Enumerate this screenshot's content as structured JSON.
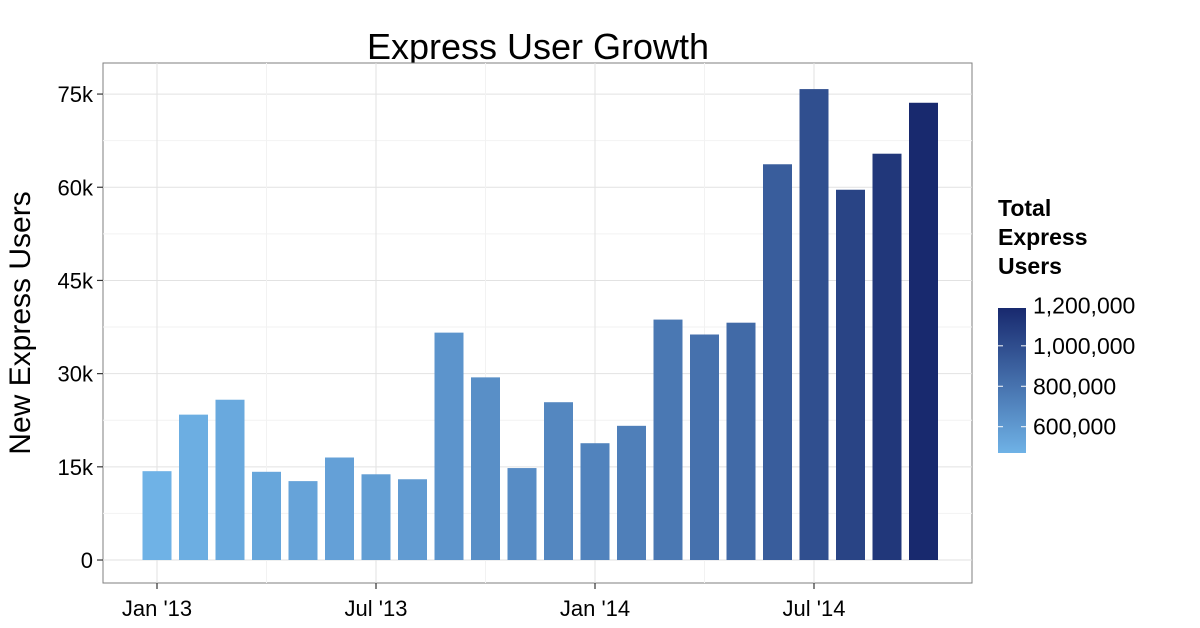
{
  "chart_data": {
    "type": "bar",
    "title": "Express User Growth",
    "xlabel": "",
    "ylabel": "New Express Users",
    "ylim": [
      -3700,
      80000
    ],
    "y_ticks": [
      {
        "value": 0,
        "label": "0"
      },
      {
        "value": 15000,
        "label": "15k"
      },
      {
        "value": 30000,
        "label": "30k"
      },
      {
        "value": 45000,
        "label": "45k"
      },
      {
        "value": 60000,
        "label": "60k"
      },
      {
        "value": 75000,
        "label": "75k"
      }
    ],
    "x_ticks": [
      {
        "index": 0,
        "label": "Jan '13"
      },
      {
        "index": 6,
        "label": "Jul '13"
      },
      {
        "index": 12,
        "label": "Jan '14"
      },
      {
        "index": 18,
        "label": "Jul '14"
      }
    ],
    "categories": [
      "Jan 2013",
      "Feb 2013",
      "Mar 2013",
      "Apr 2013",
      "May 2013",
      "Jun 2013",
      "Jul 2013",
      "Aug 2013",
      "Sep 2013",
      "Oct 2013",
      "Nov 2013",
      "Dec 2013",
      "Jan 2014",
      "Feb 2014",
      "Mar 2014",
      "Apr 2014",
      "May 2014",
      "Jun 2014",
      "Jul 2014",
      "Aug 2014",
      "Sep 2014",
      "Oct 2014"
    ],
    "values": [
      14300,
      23400,
      25800,
      14200,
      12700,
      16500,
      13800,
      13000,
      36600,
      29400,
      14800,
      25400,
      18800,
      21600,
      38700,
      36300,
      38200,
      63700,
      75800,
      59600,
      65400,
      73600
    ],
    "color_values": [
      470000,
      493000,
      519000,
      533000,
      546000,
      562000,
      576000,
      589000,
      626000,
      655000,
      670000,
      695000,
      714000,
      736000,
      774000,
      811000,
      849000,
      913000,
      989000,
      1048000,
      1114000,
      1187000
    ],
    "color_scale": {
      "low": "#6fb2e6",
      "high": "#18296e",
      "min": 470000,
      "max": 1187000
    },
    "legend": {
      "title": [
        "Total",
        "Express",
        "Users"
      ],
      "entries": [
        {
          "value": 600000,
          "label": "600,000"
        },
        {
          "value": 800000,
          "label": "800,000"
        },
        {
          "value": 1000000,
          "label": "1,000,000"
        },
        {
          "value": 1200000,
          "label": "1,200,000"
        }
      ],
      "position": "right"
    },
    "grid": true
  }
}
